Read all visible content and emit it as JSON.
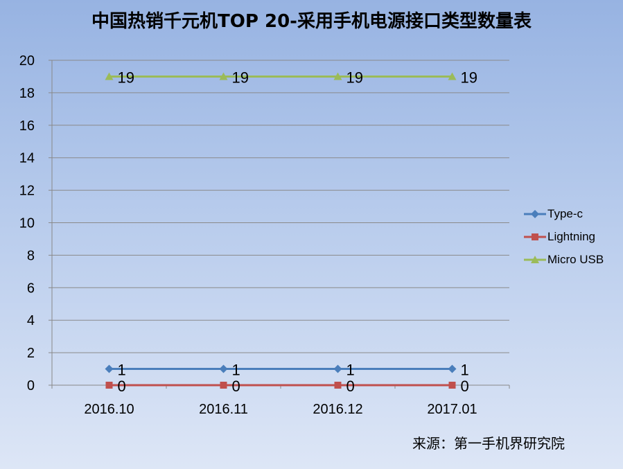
{
  "chart_data": {
    "type": "line",
    "title": "中国热销千元机TOP 20-采用手机电源接口类型数量表",
    "categories": [
      "2016.10",
      "2016.11",
      "2016.12",
      "2017.01"
    ],
    "ylim": [
      0,
      20
    ],
    "yticks": [
      0,
      2,
      4,
      6,
      8,
      10,
      12,
      14,
      16,
      18,
      20
    ],
    "grid": true,
    "legend_position": "right",
    "series": [
      {
        "name": "Type-c",
        "values": [
          1,
          1,
          1,
          1
        ],
        "color": "#4a7ebb",
        "marker": "diamond"
      },
      {
        "name": "Lightning",
        "values": [
          0,
          0,
          0,
          0
        ],
        "color": "#c0504d",
        "marker": "square"
      },
      {
        "name": "Micro USB",
        "values": [
          19,
          19,
          19,
          19
        ],
        "color": "#9bbb59",
        "marker": "triangle"
      }
    ]
  },
  "source_note": "来源：第一手机界研究院"
}
